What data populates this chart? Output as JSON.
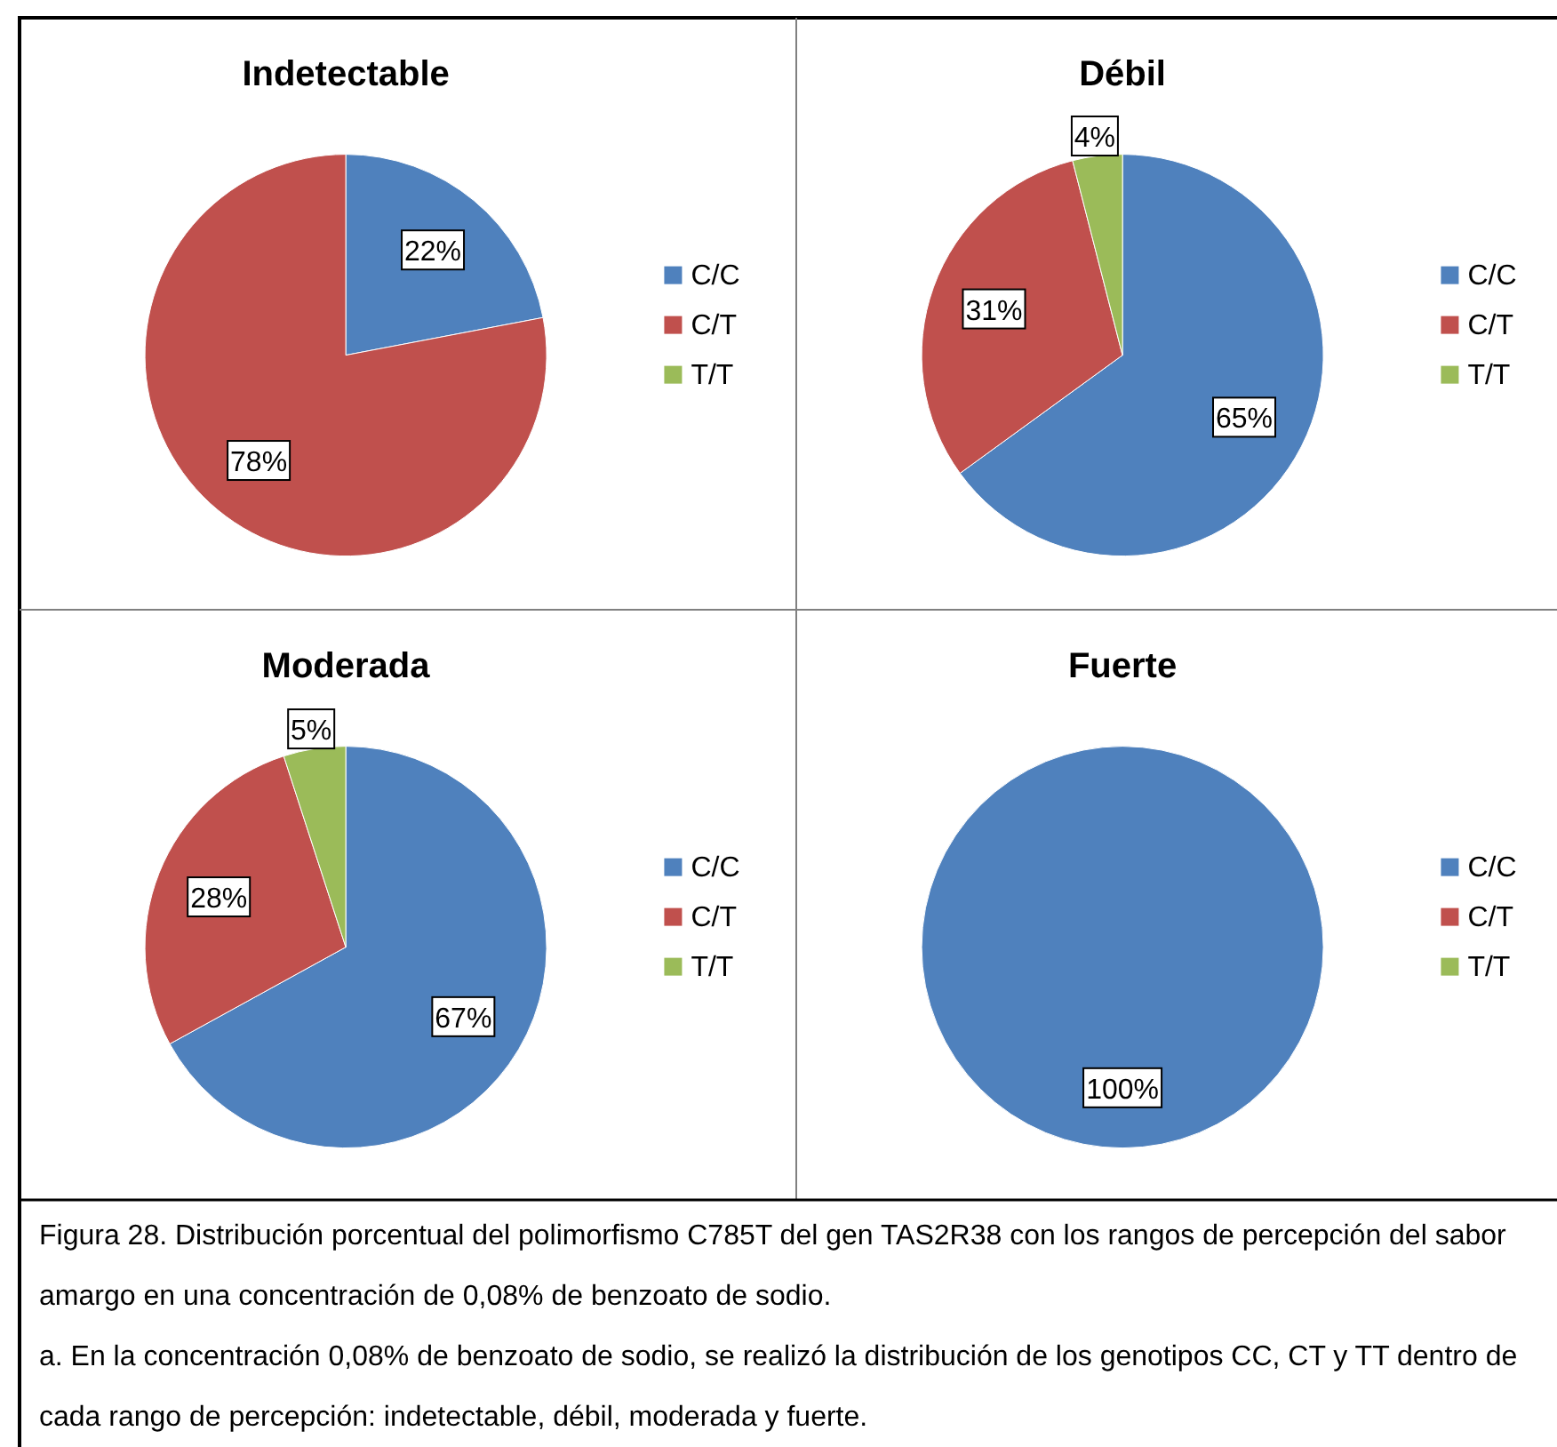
{
  "chart_data": [
    {
      "type": "pie",
      "title": "Indetectable",
      "categories": [
        "C/C",
        "C/T",
        "T/T"
      ],
      "values": [
        22,
        78,
        0
      ],
      "colors": [
        "#4f81bd",
        "#c0504d",
        "#9bbb59"
      ],
      "value_labels": [
        "22%",
        "78%",
        null
      ],
      "legend": "right"
    },
    {
      "type": "pie",
      "title": "Débil",
      "categories": [
        "C/C",
        "C/T",
        "T/T"
      ],
      "values": [
        65,
        31,
        4
      ],
      "colors": [
        "#4f81bd",
        "#c0504d",
        "#9bbb59"
      ],
      "value_labels": [
        "65%",
        "31%",
        "4%"
      ],
      "legend": "right"
    },
    {
      "type": "pie",
      "title": "Moderada",
      "categories": [
        "C/C",
        "C/T",
        "T/T"
      ],
      "values": [
        67,
        28,
        5
      ],
      "colors": [
        "#4f81bd",
        "#c0504d",
        "#9bbb59"
      ],
      "value_labels": [
        "67%",
        "28%",
        "5%"
      ],
      "legend": "right"
    },
    {
      "type": "pie",
      "title": "Fuerte",
      "categories": [
        "C/C",
        "C/T",
        "T/T"
      ],
      "values": [
        100,
        0,
        0
      ],
      "colors": [
        "#4f81bd",
        "#c0504d",
        "#9bbb59"
      ],
      "value_labels": [
        "100%",
        null,
        null
      ],
      "legend": "right",
      "annotations": [
        "Figura 28. Distribución porcentual del polimorfismo C785T del gen TAS2R38 con los rangos de percepción del sabor amargo en una concentración de 0,08% de benzoato de sodio.",
        "a. En la concentración 0,08% de benzoato de sodio, se realizó la distribución de los genotipos CC, CT y TT dentro de cada rango de percepción: indetectable, débil, moderada y fuerte."
      ]
    }
  ]
}
